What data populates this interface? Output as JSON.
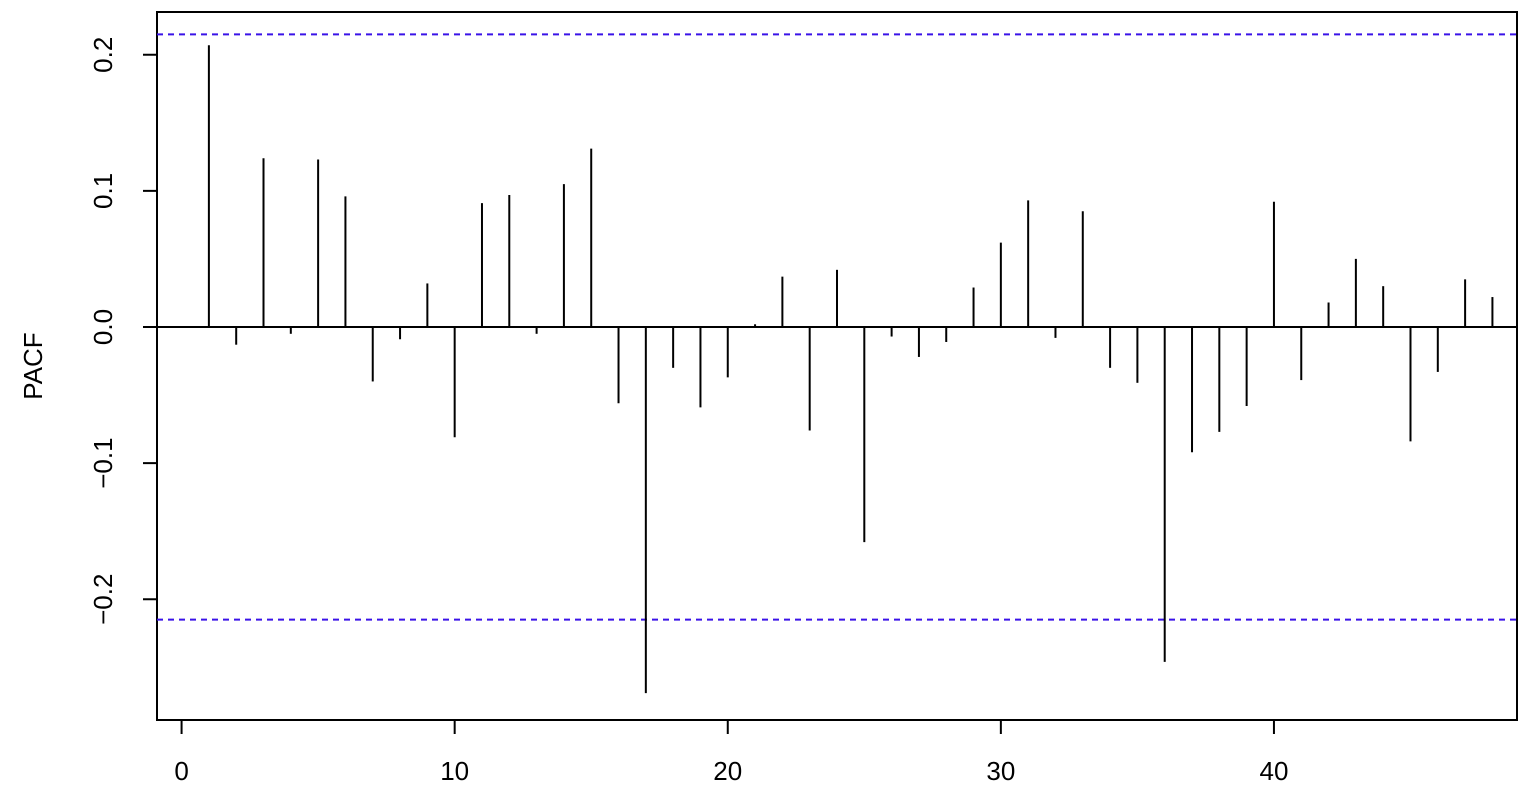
{
  "chart_data": {
    "type": "bar",
    "title": "",
    "xlabel": "",
    "ylabel": "PACF",
    "xlim": [
      -0.9,
      48.9
    ],
    "ylim": [
      -0.2887,
      0.2314
    ],
    "xticks": [
      {
        "value": 0,
        "label": "0"
      },
      {
        "value": 10,
        "label": "10"
      },
      {
        "value": 20,
        "label": "20"
      },
      {
        "value": 30,
        "label": "30"
      },
      {
        "value": 40,
        "label": "40"
      }
    ],
    "yticks": [
      {
        "value": -0.2,
        "label": "−0.2"
      },
      {
        "value": -0.1,
        "label": "−0.1"
      },
      {
        "value": 0.0,
        "label": "0.0"
      },
      {
        "value": 0.1,
        "label": "0.1"
      },
      {
        "value": 0.2,
        "label": "0.2"
      }
    ],
    "confidence_bound": 0.215,
    "confidence_color": "#3a13e8",
    "lags": [
      1,
      2,
      3,
      4,
      5,
      6,
      7,
      8,
      9,
      10,
      11,
      12,
      13,
      14,
      15,
      16,
      17,
      18,
      19,
      20,
      21,
      22,
      23,
      24,
      25,
      26,
      27,
      28,
      29,
      30,
      31,
      32,
      33,
      34,
      35,
      36,
      37,
      38,
      39,
      40,
      41,
      42,
      43,
      44,
      45,
      46,
      47,
      48
    ],
    "values": [
      0.207,
      -0.013,
      0.124,
      -0.005,
      0.123,
      0.096,
      -0.04,
      -0.009,
      0.032,
      -0.081,
      0.091,
      0.097,
      -0.005,
      0.105,
      0.131,
      -0.056,
      -0.269,
      -0.03,
      -0.059,
      -0.037,
      0.002,
      0.037,
      -0.076,
      0.042,
      -0.158,
      -0.007,
      -0.022,
      -0.011,
      0.029,
      0.062,
      0.093,
      -0.008,
      0.085,
      -0.03,
      -0.041,
      -0.246,
      -0.092,
      -0.077,
      -0.058,
      0.092,
      -0.039,
      0.018,
      0.05,
      0.03,
      -0.084,
      -0.033,
      0.035,
      0.022
    ],
    "grid": false
  }
}
